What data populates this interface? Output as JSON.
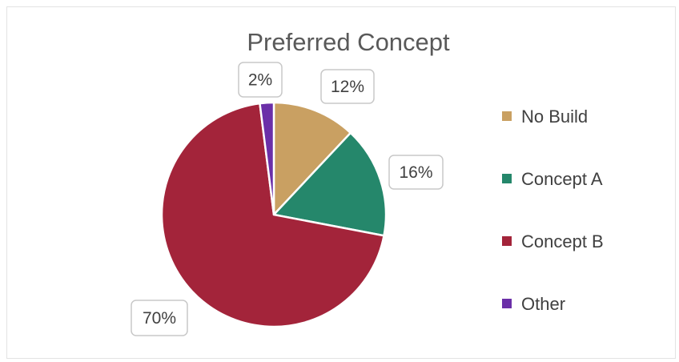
{
  "chart_data": {
    "type": "pie",
    "title": "Preferred Concept",
    "categories": [
      "No Build",
      "Concept A",
      "Concept B",
      "Other"
    ],
    "values": [
      12,
      16,
      70,
      2
    ],
    "data_labels": [
      "12%",
      "16%",
      "70%",
      "2%"
    ],
    "colors": [
      "#c9a062",
      "#25876b",
      "#a3243a",
      "#6b2fa8"
    ],
    "start_angle_deg": 0,
    "direction": "clockwise",
    "legend": "right"
  }
}
